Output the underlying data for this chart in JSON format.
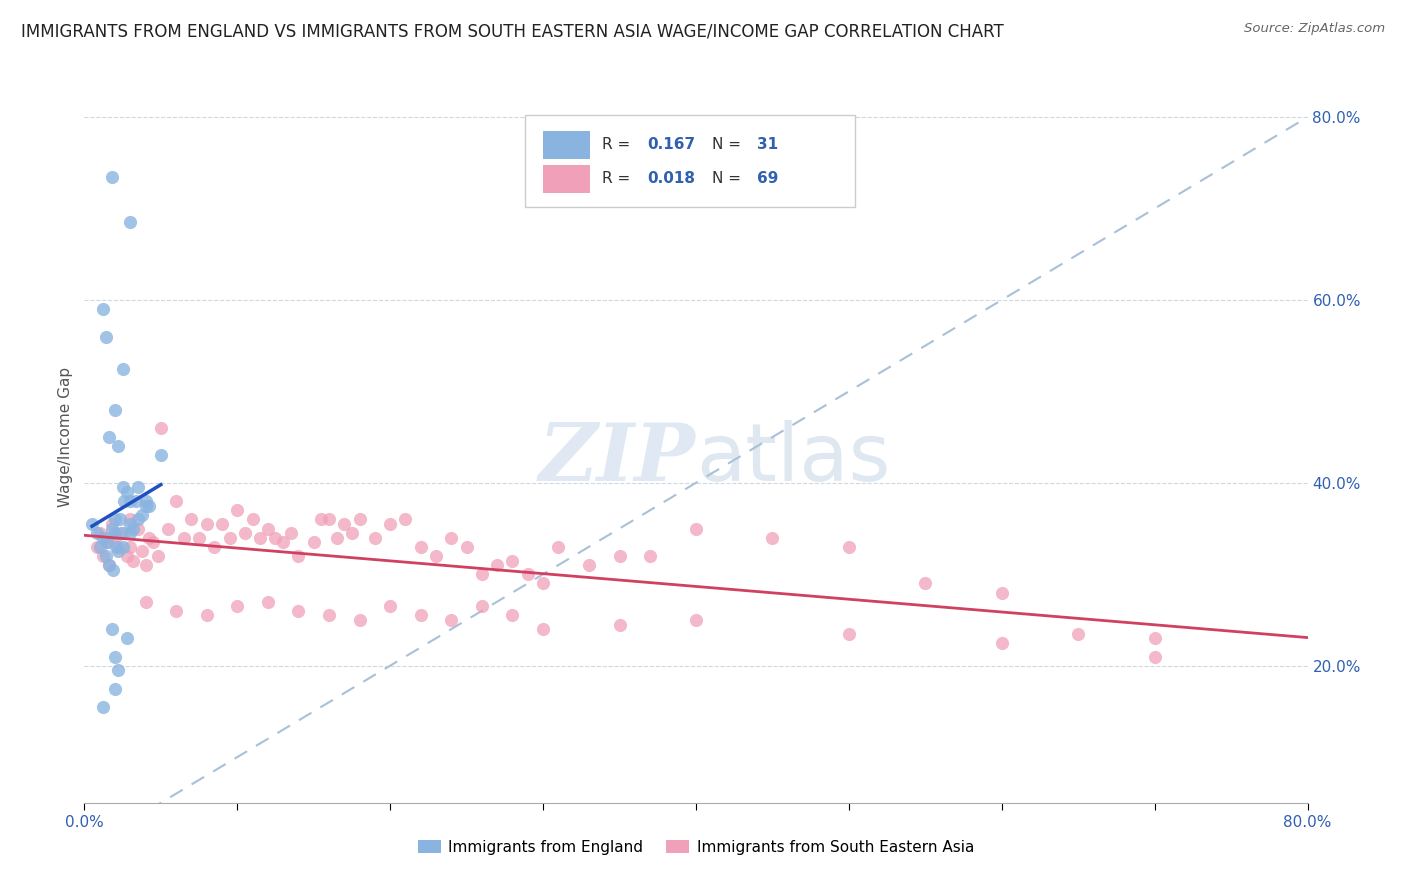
{
  "title": "IMMIGRANTS FROM ENGLAND VS IMMIGRANTS FROM SOUTH EASTERN ASIA WAGE/INCOME GAP CORRELATION CHART",
  "source": "Source: ZipAtlas.com",
  "ylabel": "Wage/Income Gap",
  "xlim": [
    0.0,
    0.8
  ],
  "ylim": [
    0.05,
    0.85
  ],
  "x_tick_vals": [
    0.0,
    0.1,
    0.2,
    0.3,
    0.4,
    0.5,
    0.6,
    0.7,
    0.8
  ],
  "x_tick_labels_show": [
    "0.0%",
    "",
    "",
    "",
    "",
    "",
    "",
    "",
    "80.0%"
  ],
  "y_tick_vals_right": [
    0.2,
    0.4,
    0.6,
    0.8
  ],
  "y_tick_labels_right": [
    "20.0%",
    "40.0%",
    "60.0%",
    "80.0%"
  ],
  "color_england": "#8ab4e0",
  "color_sea": "#f0a0b8",
  "trendline_england_color": "#2050c0",
  "trendline_sea_color": "#d04060",
  "trendline_diagonal_color": "#a8c0d8",
  "england_x": [
    0.005,
    0.008,
    0.01,
    0.012,
    0.014,
    0.015,
    0.016,
    0.018,
    0.019,
    0.02,
    0.02,
    0.021,
    0.022,
    0.023,
    0.024,
    0.025,
    0.025,
    0.026,
    0.028,
    0.03,
    0.03,
    0.03,
    0.032,
    0.034,
    0.035,
    0.035,
    0.038,
    0.04,
    0.04,
    0.042,
    0.05
  ],
  "england_y": [
    0.355,
    0.345,
    0.33,
    0.34,
    0.32,
    0.335,
    0.31,
    0.35,
    0.305,
    0.345,
    0.36,
    0.33,
    0.325,
    0.36,
    0.345,
    0.395,
    0.33,
    0.38,
    0.39,
    0.355,
    0.38,
    0.345,
    0.35,
    0.38,
    0.36,
    0.395,
    0.365,
    0.38,
    0.375,
    0.375,
    0.43
  ],
  "england_x_outliers": [
    0.018,
    0.03,
    0.012,
    0.014,
    0.025,
    0.02,
    0.016,
    0.022
  ],
  "england_y_outliers": [
    0.735,
    0.685,
    0.59,
    0.56,
    0.525,
    0.48,
    0.45,
    0.44
  ],
  "england_x_low": [
    0.012,
    0.02,
    0.02,
    0.028,
    0.018,
    0.022
  ],
  "england_y_low": [
    0.155,
    0.175,
    0.21,
    0.23,
    0.24,
    0.195
  ],
  "sea_x": [
    0.008,
    0.01,
    0.012,
    0.014,
    0.015,
    0.016,
    0.018,
    0.02,
    0.022,
    0.025,
    0.028,
    0.03,
    0.03,
    0.032,
    0.035,
    0.038,
    0.04,
    0.042,
    0.045,
    0.048,
    0.05,
    0.055,
    0.06,
    0.065,
    0.07,
    0.075,
    0.08,
    0.085,
    0.09,
    0.095,
    0.1,
    0.105,
    0.11,
    0.115,
    0.12,
    0.125,
    0.13,
    0.135,
    0.14,
    0.15,
    0.155,
    0.16,
    0.165,
    0.17,
    0.175,
    0.18,
    0.19,
    0.2,
    0.21,
    0.22,
    0.23,
    0.24,
    0.25,
    0.26,
    0.27,
    0.28,
    0.29,
    0.3,
    0.31,
    0.33,
    0.35,
    0.37,
    0.4,
    0.45,
    0.5,
    0.55,
    0.6,
    0.65,
    0.7
  ],
  "sea_y": [
    0.33,
    0.345,
    0.32,
    0.34,
    0.335,
    0.31,
    0.355,
    0.34,
    0.33,
    0.345,
    0.32,
    0.36,
    0.33,
    0.315,
    0.35,
    0.325,
    0.31,
    0.34,
    0.335,
    0.32,
    0.46,
    0.35,
    0.38,
    0.34,
    0.36,
    0.34,
    0.355,
    0.33,
    0.355,
    0.34,
    0.37,
    0.345,
    0.36,
    0.34,
    0.35,
    0.34,
    0.335,
    0.345,
    0.32,
    0.335,
    0.36,
    0.36,
    0.34,
    0.355,
    0.345,
    0.36,
    0.34,
    0.355,
    0.36,
    0.33,
    0.32,
    0.34,
    0.33,
    0.3,
    0.31,
    0.315,
    0.3,
    0.29,
    0.33,
    0.31,
    0.32,
    0.32,
    0.35,
    0.34,
    0.33,
    0.29,
    0.28,
    0.235,
    0.23
  ],
  "sea_x_low": [
    0.04,
    0.06,
    0.08,
    0.1,
    0.12,
    0.14,
    0.16,
    0.18,
    0.2,
    0.22,
    0.24,
    0.26,
    0.28,
    0.3,
    0.35,
    0.4,
    0.5,
    0.6,
    0.7
  ],
  "sea_y_low": [
    0.27,
    0.26,
    0.255,
    0.265,
    0.27,
    0.26,
    0.255,
    0.25,
    0.265,
    0.255,
    0.25,
    0.265,
    0.255,
    0.24,
    0.245,
    0.25,
    0.235,
    0.225,
    0.21
  ]
}
